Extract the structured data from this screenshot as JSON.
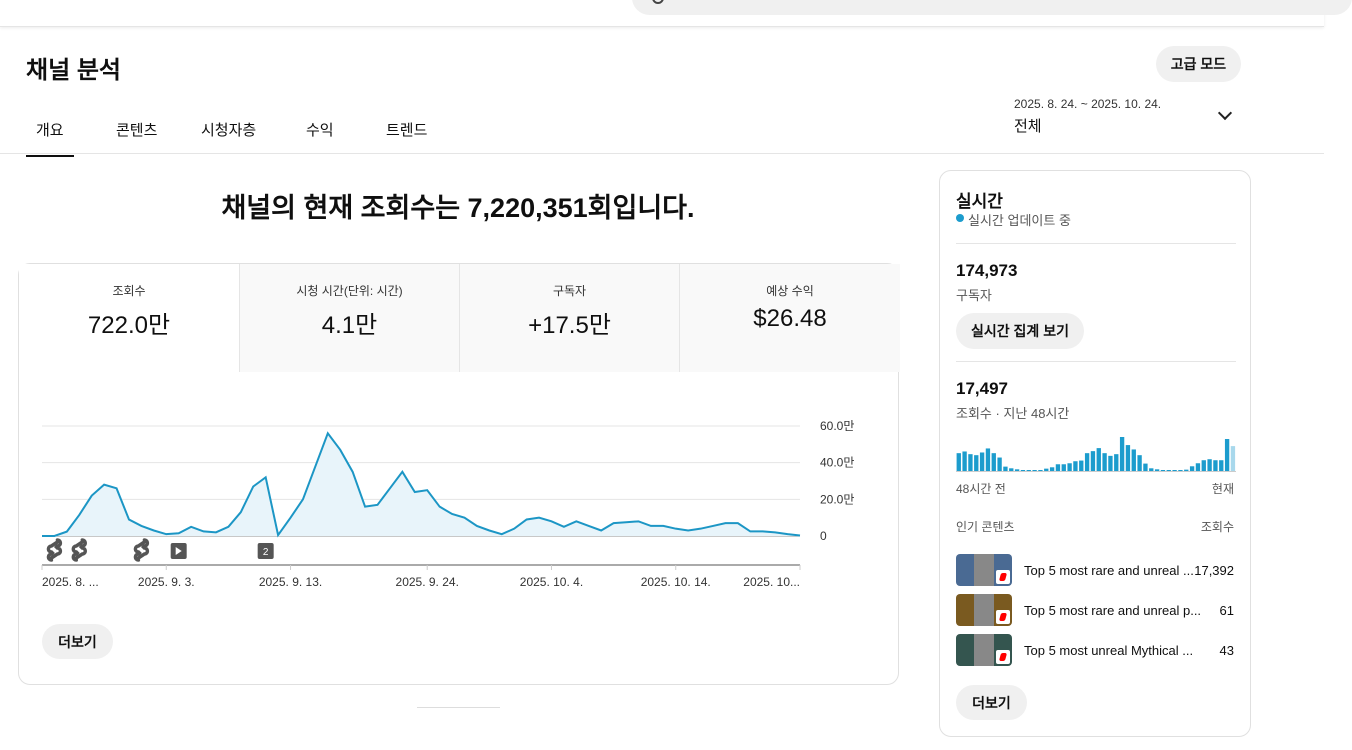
{
  "header": {
    "title": "채널 분석",
    "advanced_mode": "고급 모드"
  },
  "tabs": [
    {
      "label": "개요",
      "active": true
    },
    {
      "label": "콘텐츠"
    },
    {
      "label": "시청자층"
    },
    {
      "label": "수익"
    },
    {
      "label": "트렌드"
    }
  ],
  "date_range": {
    "range": "2025. 8. 24. ~ 2025. 10. 24.",
    "label": "전체"
  },
  "headline": "채널의 현재 조회수는 7,220,351회입니다.",
  "metrics": [
    {
      "label": "조회수",
      "value": "722.0만"
    },
    {
      "label": "시청 시간(단위: 시간)",
      "value": "4.1만"
    },
    {
      "label": "구독자",
      "value": "+17.5만"
    },
    {
      "label": "예상 수익",
      "value": "$26.48"
    }
  ],
  "more_label": "더보기",
  "colors": {
    "line": "#1c96c5",
    "fill": "#e8f4fa",
    "bar": "#1c9ccd",
    "bar_current": "#a8d8ec",
    "accent": "#1c9ccd"
  },
  "chart_data": {
    "type": "area",
    "x_start": "2025-08-24",
    "x_end": "2025-10-24",
    "ylim": [
      0,
      60
    ],
    "y_unit": "만",
    "y_ticks": [
      "0",
      "20.0만",
      "40.0만",
      "60.0만"
    ],
    "grid": true,
    "values": [
      0,
      0,
      2.4,
      11.5,
      22,
      28,
      26,
      9,
      5.5,
      3,
      1,
      1.5,
      5,
      2.5,
      2,
      5,
      13,
      27,
      32,
      0.5,
      10,
      20,
      38,
      56,
      47,
      35,
      16,
      17,
      26,
      35,
      24,
      25,
      16,
      12,
      10,
      5.5,
      3,
      1,
      4,
      9,
      10,
      8,
      5,
      8,
      5.5,
      3,
      7,
      7.5,
      8,
      5.5,
      5.5,
      4,
      3,
      4,
      5.5,
      7,
      7,
      2.5,
      2.5,
      2,
      1,
      0.3
    ],
    "x_ticks": [
      {
        "label": "2025. 8. ...",
        "date": "2025-08-24"
      },
      {
        "label": "2025. 9. 3.",
        "date": "2025-09-03"
      },
      {
        "label": "2025. 9. 13.",
        "date": "2025-09-13"
      },
      {
        "label": "2025. 9. 24.",
        "date": "2025-09-24"
      },
      {
        "label": "2025. 10. 4.",
        "date": "2025-10-04"
      },
      {
        "label": "2025. 10. 14.",
        "date": "2025-10-14"
      },
      {
        "label": "2025. 10...",
        "date": "2025-10-24"
      }
    ],
    "markers": [
      {
        "type": "shorts",
        "date": "2025-08-25"
      },
      {
        "type": "shorts",
        "date": "2025-08-27"
      },
      {
        "type": "shorts",
        "date": "2025-09-01"
      },
      {
        "type": "video",
        "date": "2025-09-04"
      },
      {
        "type": "count",
        "label": "2",
        "date": "2025-09-11"
      }
    ]
  },
  "realtime": {
    "title": "실시간",
    "status": "실시간 업데이트 중",
    "subscribers": "174,973",
    "subscribers_label": "구독자",
    "live_button": "실시간 집계 보기",
    "views": "17,497",
    "views_label": "조회수 · 지난 48시간",
    "bar_values": [
      53,
      58,
      50,
      47,
      55,
      67,
      53,
      40,
      13,
      8,
      5,
      2,
      2,
      2,
      2,
      7,
      11,
      20,
      20,
      23,
      29,
      31,
      53,
      59,
      68,
      53,
      45,
      50,
      101,
      77,
      64,
      47,
      22,
      8,
      5,
      2,
      2,
      2,
      2,
      4,
      14,
      23,
      32,
      35,
      32,
      32,
      95,
      74
    ],
    "axis_start": "48시간 전",
    "axis_end": "현재",
    "popular_label": "인기 콘텐츠",
    "views_col": "조회수",
    "items": [
      {
        "title": "Top 5 most rare and unreal ...",
        "views": "17,392",
        "thumb": "#4a6a93"
      },
      {
        "title": "Top 5 most rare and unreal p...",
        "views": "61",
        "thumb": "#7a5a20"
      },
      {
        "title": "Top 5 most unreal Mythical ...",
        "views": "43",
        "thumb": "#34554f"
      }
    ],
    "more_label": "더보기"
  }
}
